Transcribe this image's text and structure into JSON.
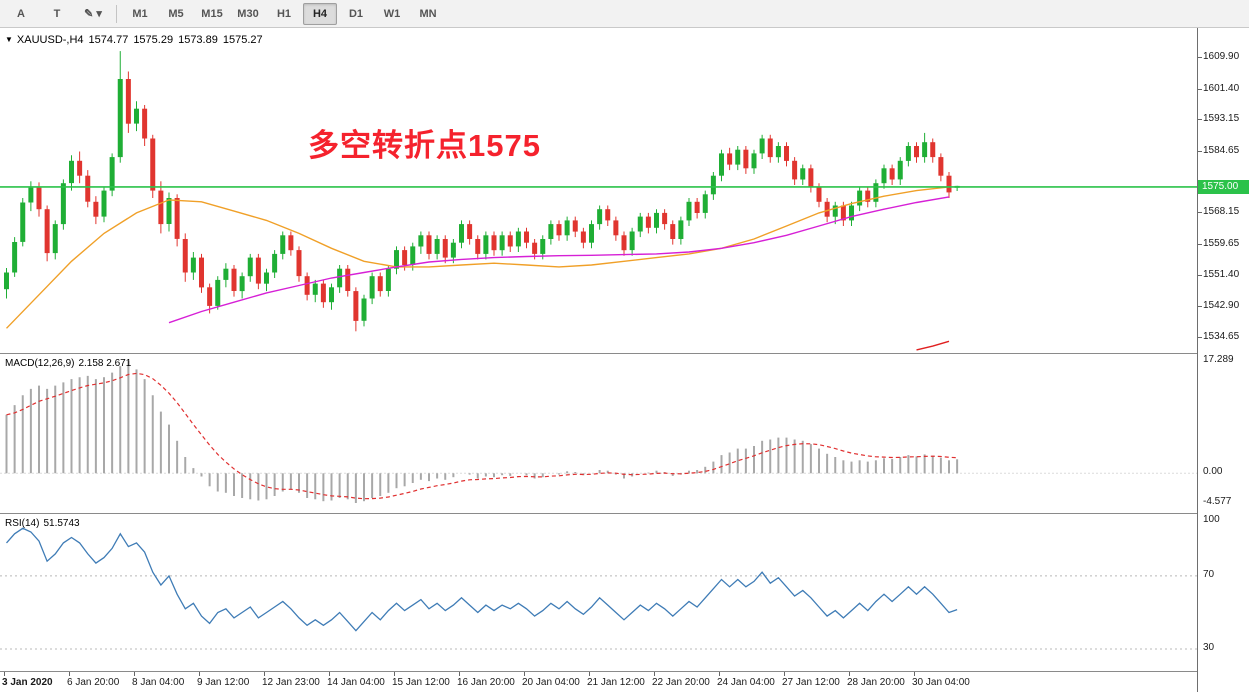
{
  "toolbar": {
    "tools": [
      {
        "name": "cursor-tool-button",
        "label": "A"
      },
      {
        "name": "text-tool-button",
        "label": "T"
      },
      {
        "name": "drawing-tools-button",
        "label": "✎",
        "caret": " ▾"
      }
    ],
    "timeframes": [
      "M1",
      "M5",
      "M15",
      "M30",
      "H1",
      "H4",
      "D1",
      "W1",
      "MN"
    ],
    "selected": "H4"
  },
  "annotation": {
    "text": "多空转折点1575",
    "color": "#f5222d"
  },
  "colors": {
    "bull": "#1fae35",
    "bear": "#e0352f",
    "hline": "#2bc24a",
    "ma_fast": "#f0a028",
    "ma_slow": "#d620d6",
    "ma_long": "#e02020",
    "macd_hist": "#a8a8a8",
    "macd_signal": "#e03030",
    "rsi_line": "#3f7cb6"
  },
  "chart_data": [
    {
      "type": "candlestick",
      "collapse_icon": "▼",
      "symbol_label": "XAUUSD-,H4",
      "ohlc": {
        "open": "1574.77",
        "high": "1575.29",
        "low": "1573.89",
        "close": "1575.27"
      },
      "hline": {
        "price": 1575.0,
        "label": "1575.00"
      },
      "price_axis_ticks": [
        1609.9,
        1601.4,
        1593.15,
        1584.65,
        1568.15,
        1559.65,
        1551.4,
        1542.9,
        1534.65
      ],
      "time_ticks": [
        "3 Jan 2020",
        "6 Jan 20:00",
        "8 Jan 04:00",
        "9 Jan 12:00",
        "12 Jan 23:00",
        "14 Jan 04:00",
        "15 Jan 12:00",
        "16 Jan 20:00",
        "20 Jan 04:00",
        "21 Jan 12:00",
        "22 Jan 20:00",
        "24 Jan 04:00",
        "27 Jan 12:00",
        "28 Jan 20:00",
        "30 Jan 04:00"
      ],
      "candles": [
        [
          1547.5,
          1553.2,
          1545.0,
          1552.0
        ],
        [
          1552.0,
          1561.5,
          1550.8,
          1560.2
        ],
        [
          1560.2,
          1572.0,
          1559.0,
          1570.8
        ],
        [
          1570.8,
          1576.5,
          1568.5,
          1574.8
        ],
        [
          1574.8,
          1576.2,
          1567.0,
          1569.0
        ],
        [
          1569.0,
          1570.0,
          1555.0,
          1557.2
        ],
        [
          1557.2,
          1566.0,
          1555.5,
          1565.0
        ],
        [
          1565.0,
          1577.0,
          1563.5,
          1576.0
        ],
        [
          1576.0,
          1583.5,
          1574.0,
          1582.0
        ],
        [
          1582.0,
          1584.5,
          1576.0,
          1578.0
        ],
        [
          1578.0,
          1579.5,
          1569.5,
          1571.0
        ],
        [
          1571.0,
          1572.5,
          1565.0,
          1567.0
        ],
        [
          1567.0,
          1575.0,
          1565.5,
          1574.0
        ],
        [
          1574.0,
          1584.0,
          1572.5,
          1583.0
        ],
        [
          1583.0,
          1611.5,
          1581.5,
          1604.0
        ],
        [
          1604.0,
          1606.0,
          1589.5,
          1592.0
        ],
        [
          1592.0,
          1598.0,
          1590.0,
          1596.0
        ],
        [
          1596.0,
          1597.0,
          1586.0,
          1588.0
        ],
        [
          1588.0,
          1589.0,
          1572.0,
          1574.0
        ],
        [
          1574.0,
          1576.5,
          1562.5,
          1565.0
        ],
        [
          1565.0,
          1573.5,
          1563.0,
          1572.0
        ],
        [
          1572.0,
          1573.0,
          1559.0,
          1561.0
        ],
        [
          1561.0,
          1562.5,
          1549.5,
          1552.0
        ],
        [
          1552.0,
          1557.5,
          1550.0,
          1556.0
        ],
        [
          1556.0,
          1557.0,
          1546.5,
          1548.0
        ],
        [
          1548.0,
          1549.0,
          1541.0,
          1543.0
        ],
        [
          1543.0,
          1551.0,
          1542.0,
          1550.0
        ],
        [
          1550.0,
          1554.5,
          1548.0,
          1553.0
        ],
        [
          1553.0,
          1554.0,
          1545.5,
          1547.0
        ],
        [
          1547.0,
          1552.0,
          1545.0,
          1551.0
        ],
        [
          1551.0,
          1557.0,
          1549.5,
          1556.0
        ],
        [
          1556.0,
          1557.0,
          1547.5,
          1549.0
        ],
        [
          1549.0,
          1553.0,
          1547.0,
          1552.0
        ],
        [
          1552.0,
          1558.0,
          1550.5,
          1557.0
        ],
        [
          1557.0,
          1563.0,
          1555.5,
          1562.0
        ],
        [
          1562.0,
          1563.0,
          1556.5,
          1558.0
        ],
        [
          1558.0,
          1559.0,
          1549.5,
          1551.0
        ],
        [
          1551.0,
          1552.0,
          1544.5,
          1546.0
        ],
        [
          1546.0,
          1550.0,
          1544.0,
          1549.0
        ],
        [
          1549.0,
          1550.0,
          1542.5,
          1544.0
        ],
        [
          1544.0,
          1549.0,
          1542.0,
          1548.0
        ],
        [
          1548.0,
          1554.0,
          1546.5,
          1553.0
        ],
        [
          1553.0,
          1554.0,
          1545.5,
          1547.0
        ],
        [
          1547.0,
          1548.0,
          1536.2,
          1539.0
        ],
        [
          1539.0,
          1546.0,
          1537.5,
          1545.0
        ],
        [
          1545.0,
          1552.0,
          1543.5,
          1551.0
        ],
        [
          1551.0,
          1552.0,
          1545.5,
          1547.0
        ],
        [
          1547.0,
          1554.0,
          1545.5,
          1553.0
        ],
        [
          1553.0,
          1559.0,
          1551.5,
          1558.0
        ],
        [
          1558.0,
          1559.0,
          1552.5,
          1554.0
        ],
        [
          1554.0,
          1560.0,
          1552.5,
          1559.0
        ],
        [
          1559.0,
          1563.0,
          1557.0,
          1562.0
        ],
        [
          1562.0,
          1563.0,
          1555.5,
          1557.0
        ],
        [
          1557.0,
          1562.0,
          1555.5,
          1561.0
        ],
        [
          1561.0,
          1562.0,
          1554.5,
          1556.0
        ],
        [
          1556.0,
          1561.0,
          1554.5,
          1560.0
        ],
        [
          1560.0,
          1566.0,
          1558.5,
          1565.0
        ],
        [
          1565.0,
          1566.0,
          1559.5,
          1561.0
        ],
        [
          1561.0,
          1562.0,
          1555.5,
          1557.0
        ],
        [
          1557.0,
          1563.0,
          1555.5,
          1562.0
        ],
        [
          1562.0,
          1563.0,
          1556.5,
          1558.0
        ],
        [
          1558.0,
          1563.0,
          1556.5,
          1562.0
        ],
        [
          1562.0,
          1563.0,
          1557.5,
          1559.0
        ],
        [
          1559.0,
          1564.0,
          1557.5,
          1563.0
        ],
        [
          1563.0,
          1564.0,
          1558.5,
          1560.0
        ],
        [
          1560.0,
          1561.0,
          1555.5,
          1557.0
        ],
        [
          1557.0,
          1562.0,
          1555.5,
          1561.0
        ],
        [
          1561.0,
          1566.0,
          1559.5,
          1565.0
        ],
        [
          1565.0,
          1566.0,
          1560.5,
          1562.0
        ],
        [
          1562.0,
          1567.0,
          1560.5,
          1566.0
        ],
        [
          1566.0,
          1567.0,
          1561.5,
          1563.0
        ],
        [
          1563.0,
          1564.0,
          1558.5,
          1560.0
        ],
        [
          1560.0,
          1566.0,
          1558.5,
          1565.0
        ],
        [
          1565.0,
          1570.0,
          1563.5,
          1569.0
        ],
        [
          1569.0,
          1570.0,
          1564.5,
          1566.0
        ],
        [
          1566.0,
          1567.0,
          1560.5,
          1562.0
        ],
        [
          1562.0,
          1563.0,
          1556.5,
          1558.0
        ],
        [
          1558.0,
          1564.0,
          1556.5,
          1563.0
        ],
        [
          1563.0,
          1568.0,
          1561.5,
          1567.0
        ],
        [
          1567.0,
          1568.0,
          1562.5,
          1564.0
        ],
        [
          1564.0,
          1569.0,
          1562.5,
          1568.0
        ],
        [
          1568.0,
          1569.0,
          1563.5,
          1565.0
        ],
        [
          1565.0,
          1566.0,
          1559.5,
          1561.0
        ],
        [
          1561.0,
          1567.0,
          1559.5,
          1566.0
        ],
        [
          1566.0,
          1572.0,
          1564.5,
          1571.0
        ],
        [
          1571.0,
          1572.0,
          1566.5,
          1568.0
        ],
        [
          1568.0,
          1574.0,
          1566.5,
          1573.0
        ],
        [
          1573.0,
          1579.0,
          1571.5,
          1578.0
        ],
        [
          1578.0,
          1585.0,
          1576.5,
          1584.0
        ],
        [
          1584.0,
          1585.5,
          1579.5,
          1581.0
        ],
        [
          1581.0,
          1586.0,
          1579.5,
          1585.0
        ],
        [
          1585.0,
          1586.0,
          1578.5,
          1580.0
        ],
        [
          1580.0,
          1585.0,
          1578.5,
          1584.0
        ],
        [
          1584.0,
          1589.0,
          1582.5,
          1588.0
        ],
        [
          1588.0,
          1589.0,
          1581.5,
          1583.0
        ],
        [
          1583.0,
          1587.0,
          1581.5,
          1586.0
        ],
        [
          1586.0,
          1587.0,
          1580.5,
          1582.0
        ],
        [
          1582.0,
          1583.0,
          1575.5,
          1577.0
        ],
        [
          1577.0,
          1581.0,
          1575.5,
          1580.0
        ],
        [
          1580.0,
          1581.0,
          1573.5,
          1575.0
        ],
        [
          1575.0,
          1576.0,
          1569.5,
          1571.0
        ],
        [
          1571.0,
          1572.0,
          1565.5,
          1567.0
        ],
        [
          1567.0,
          1571.0,
          1565.0,
          1570.0
        ],
        [
          1570.0,
          1571.0,
          1564.5,
          1566.0
        ],
        [
          1566.0,
          1571.0,
          1564.5,
          1570.0
        ],
        [
          1570.0,
          1575.0,
          1568.5,
          1574.0
        ],
        [
          1574.0,
          1575.0,
          1569.5,
          1571.0
        ],
        [
          1571.0,
          1577.0,
          1569.5,
          1576.0
        ],
        [
          1576.0,
          1581.0,
          1574.5,
          1580.0
        ],
        [
          1580.0,
          1581.0,
          1575.5,
          1577.0
        ],
        [
          1577.0,
          1583.0,
          1575.5,
          1582.0
        ],
        [
          1582.0,
          1587.0,
          1580.5,
          1586.0
        ],
        [
          1586.0,
          1587.0,
          1581.5,
          1583.0
        ],
        [
          1583.0,
          1589.5,
          1581.5,
          1587.0
        ],
        [
          1587.0,
          1588.0,
          1581.5,
          1583.0
        ],
        [
          1583.0,
          1584.0,
          1576.5,
          1578.0
        ],
        [
          1578.0,
          1579.0,
          1572.0,
          1573.5
        ],
        [
          1574.77,
          1575.29,
          1573.89,
          1575.27
        ]
      ],
      "ma_fast": {
        "start": 0,
        "step": 4,
        "values": [
          1537,
          1546,
          1555,
          1562.5,
          1568,
          1571.5,
          1571,
          1568.5,
          1566,
          1562.5,
          1558.5,
          1555,
          1553.5,
          1553.5,
          1554,
          1554.5,
          1554,
          1553.5,
          1554,
          1555,
          1556,
          1557,
          1558.5,
          1561,
          1564.5,
          1568,
          1570.5,
          1572.5,
          1574,
          1575
        ]
      },
      "ma_slow": {
        "start": 20,
        "step": 4,
        "values": [
          1538.5,
          1541.5,
          1544,
          1546.5,
          1548.5,
          1550.5,
          1552,
          1553.5,
          1554.8,
          1555.5,
          1556,
          1556.3,
          1556.5,
          1556.6,
          1556.8,
          1557,
          1557.5,
          1558.5,
          1560,
          1562,
          1564.5,
          1567,
          1569,
          1570.8,
          1572.3
        ]
      },
      "ma_long": {
        "start": 112,
        "step": 2,
        "values": [
          1531.2,
          1532.2,
          1533.5
        ]
      }
    },
    {
      "type": "histogram",
      "label": "MACD(12,26,9)",
      "values_label": "2.158 2.671",
      "axis_ticks": [
        "17.289",
        "0.00",
        "-4.577"
      ],
      "histogram": [
        9.0,
        10.5,
        12.0,
        13.0,
        13.5,
        13.0,
        13.5,
        14.0,
        14.5,
        14.8,
        15.0,
        14.5,
        14.8,
        15.5,
        16.5,
        17.3,
        16.0,
        14.5,
        12.0,
        9.5,
        7.5,
        5.0,
        2.5,
        0.8,
        -0.5,
        -2.0,
        -2.8,
        -3.0,
        -3.5,
        -3.8,
        -4.0,
        -4.2,
        -4.0,
        -3.5,
        -2.8,
        -2.5,
        -3.0,
        -3.8,
        -4.0,
        -4.3,
        -4.2,
        -3.8,
        -4.0,
        -4.577,
        -4.3,
        -3.8,
        -3.5,
        -3.0,
        -2.3,
        -2.0,
        -1.5,
        -1.0,
        -1.2,
        -0.8,
        -1.0,
        -0.6,
        0.0,
        -0.2,
        -0.8,
        -0.5,
        -0.6,
        -0.3,
        -0.4,
        0.0,
        -0.3,
        -0.8,
        -0.6,
        0.0,
        -0.2,
        0.3,
        0.2,
        -0.3,
        0.0,
        0.5,
        0.4,
        -0.2,
        -0.8,
        -0.5,
        0.0,
        0.1,
        0.4,
        0.2,
        -0.4,
        -0.2,
        0.4,
        0.5,
        1.0,
        1.8,
        2.8,
        3.2,
        3.8,
        3.8,
        4.2,
        5.0,
        5.2,
        5.5,
        5.5,
        5.2,
        5.0,
        4.5,
        3.8,
        3.0,
        2.5,
        2.0,
        1.8,
        2.0,
        1.8,
        2.0,
        2.3,
        2.2,
        2.5,
        2.8,
        2.6,
        2.9,
        2.7,
        2.4,
        2.0,
        2.158
      ]
    },
    {
      "type": "line",
      "label": "RSI(14)",
      "value_label": "51.5743",
      "levels": [
        70,
        30
      ],
      "axis_ticks": [
        "100",
        "70",
        "30"
      ],
      "values": [
        88,
        93,
        96,
        94,
        89,
        78,
        82,
        88,
        91,
        88,
        82,
        77,
        80,
        85,
        93,
        86,
        88,
        83,
        72,
        65,
        70,
        60,
        52,
        55,
        48,
        44,
        50,
        52,
        47,
        50,
        53,
        47,
        50,
        53,
        56,
        52,
        47,
        43,
        46,
        43,
        46,
        50,
        45,
        40,
        45,
        50,
        46,
        51,
        55,
        51,
        54,
        57,
        52,
        55,
        51,
        54,
        58,
        54,
        50,
        54,
        51,
        54,
        52,
        55,
        52,
        48,
        51,
        55,
        52,
        56,
        52,
        49,
        53,
        58,
        54,
        50,
        46,
        50,
        54,
        51,
        55,
        52,
        48,
        52,
        56,
        53,
        58,
        63,
        68,
        64,
        68,
        64,
        67,
        72,
        66,
        69,
        64,
        59,
        62,
        58,
        53,
        48,
        51,
        47,
        51,
        55,
        51,
        56,
        60,
        56,
        60,
        64,
        60,
        64,
        60,
        55,
        50,
        51.57
      ]
    }
  ]
}
